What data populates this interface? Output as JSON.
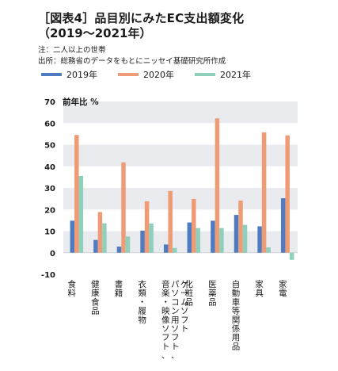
{
  "header": {
    "title": "［図表4］品目別にみたEC支出額変化",
    "subtitle": "（2019〜2021年）",
    "note": "注：二人以上の世帯",
    "source": "出所：総務省のデータをもとにニッセイ基礎研究所作成"
  },
  "colors": {
    "s2019": "#4f7cc0",
    "s2020": "#ef9c76",
    "s2021": "#8fd0bd",
    "band": "#e9ebef"
  },
  "chart_data": {
    "type": "bar",
    "ylabel": "前年比 %",
    "ylim": [
      -10,
      70
    ],
    "yticks": [
      -10,
      0,
      10,
      20,
      30,
      40,
      50,
      60,
      70
    ],
    "categories": [
      [
        "食料"
      ],
      [
        "健康食品"
      ],
      [
        "書籍"
      ],
      [
        "衣類・履物"
      ],
      [
        "音楽・映像ソフト、",
        "パソコン用ソフト、",
        "ゲームソフト"
      ],
      [
        "化粧品"
      ],
      [
        "医薬品"
      ],
      [
        "自動車等関係用品"
      ],
      [
        "家具"
      ],
      [
        "家電"
      ]
    ],
    "series": [
      {
        "name": "2019年",
        "values": [
          14.8,
          5.9,
          2.8,
          10.2,
          3.8,
          14.0,
          14.8,
          17.5,
          12.2,
          25.2
        ]
      },
      {
        "name": "2020年",
        "values": [
          54.5,
          18.8,
          41.8,
          23.8,
          28.6,
          24.9,
          62.2,
          24.1,
          55.7,
          54.3
        ]
      },
      {
        "name": "2021年",
        "values": [
          35.5,
          13.6,
          7.5,
          13.5,
          2.2,
          11.4,
          11.4,
          12.9,
          2.5,
          -3.3
        ]
      }
    ]
  }
}
